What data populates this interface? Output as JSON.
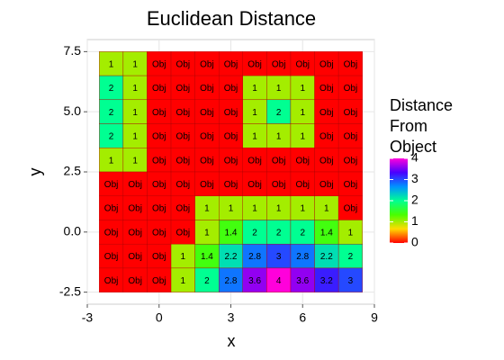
{
  "chart_data": {
    "type": "heatmap",
    "title": "Euclidean Distance",
    "x_label": "x",
    "y_label": "y",
    "legend_title": [
      "Distance",
      "From",
      "Object"
    ],
    "x": [
      -2,
      -1,
      0,
      1,
      2,
      3,
      4,
      5,
      6,
      7,
      8
    ],
    "y": [
      7,
      6,
      5,
      4,
      3,
      2,
      1,
      0,
      -1,
      -2
    ],
    "values": [
      [
        1,
        1,
        0,
        0,
        0,
        0,
        0,
        0,
        0,
        0,
        0
      ],
      [
        2,
        1,
        0,
        0,
        0,
        0,
        1,
        1,
        1,
        0,
        0
      ],
      [
        2,
        1,
        0,
        0,
        0,
        0,
        1,
        2,
        1,
        0,
        0
      ],
      [
        2,
        1,
        0,
        0,
        0,
        0,
        1,
        1,
        1,
        0,
        0
      ],
      [
        1,
        1,
        0,
        0,
        0,
        0,
        0,
        0,
        0,
        0,
        0
      ],
      [
        0,
        0,
        0,
        0,
        0,
        0,
        0,
        0,
        0,
        0,
        0
      ],
      [
        0,
        0,
        0,
        0,
        1,
        1,
        1,
        1,
        1,
        1,
        0
      ],
      [
        0,
        0,
        0,
        0,
        1,
        1.4,
        2,
        2,
        2,
        1.4,
        1
      ],
      [
        0,
        0,
        0,
        1,
        1.4,
        2.2,
        2.8,
        3,
        2.8,
        2.2,
        2
      ],
      [
        0,
        0,
        0,
        1,
        2,
        2.8,
        3.6,
        4,
        3.6,
        3.2,
        3
      ]
    ],
    "value_labels": [
      [
        null,
        null,
        "Obj",
        "Obj",
        "Obj",
        "Obj",
        "Obj",
        "Obj",
        "Obj",
        "Obj",
        "Obj"
      ],
      [
        null,
        null,
        "Obj",
        "Obj",
        "Obj",
        "Obj",
        null,
        null,
        null,
        "Obj",
        "Obj"
      ],
      [
        null,
        null,
        "Obj",
        "Obj",
        "Obj",
        "Obj",
        null,
        null,
        null,
        "Obj",
        "Obj"
      ],
      [
        null,
        null,
        "Obj",
        "Obj",
        "Obj",
        "Obj",
        null,
        null,
        null,
        "Obj",
        "Obj"
      ],
      [
        null,
        null,
        "Obj",
        "Obj",
        "Obj",
        "Obj",
        "Obj",
        "Obj",
        "Obj",
        "Obj",
        "Obj"
      ],
      [
        "Obj",
        "Obj",
        "Obj",
        "Obj",
        "Obj",
        "Obj",
        "Obj",
        "Obj",
        "Obj",
        "Obj",
        "Obj"
      ],
      [
        "Obj",
        "Obj",
        "Obj",
        "Obj",
        null,
        null,
        null,
        null,
        null,
        null,
        "Obj"
      ],
      [
        "Obj",
        "Obj",
        "Obj",
        "Obj",
        null,
        null,
        null,
        null,
        null,
        null,
        null
      ],
      [
        "Obj",
        "Obj",
        "Obj",
        null,
        null,
        null,
        null,
        null,
        null,
        null,
        null
      ],
      [
        "Obj",
        "Obj",
        "Obj",
        null,
        null,
        null,
        null,
        null,
        null,
        null,
        null
      ]
    ],
    "xlim": [
      -3,
      9
    ],
    "ylim": [
      -3,
      8
    ],
    "xticks": [
      -3,
      0,
      3,
      6,
      9
    ],
    "yticks": [
      {
        "value": -2.5,
        "label": "-2.5"
      },
      {
        "value": 0,
        "label": "0.0"
      },
      {
        "value": 2.5,
        "label": "2.5"
      },
      {
        "value": 5,
        "label": "5.0"
      },
      {
        "value": 7.5,
        "label": "7.5"
      }
    ],
    "clim": [
      0,
      4
    ],
    "colorbar_ticks": [
      0,
      1,
      2,
      3,
      4
    ],
    "colorscale": [
      "#FF0000",
      "#FFDB00",
      "#49FF00",
      "#00FF92",
      "#0092FF",
      "#4900FF",
      "#FF00DB"
    ],
    "grid": true
  }
}
